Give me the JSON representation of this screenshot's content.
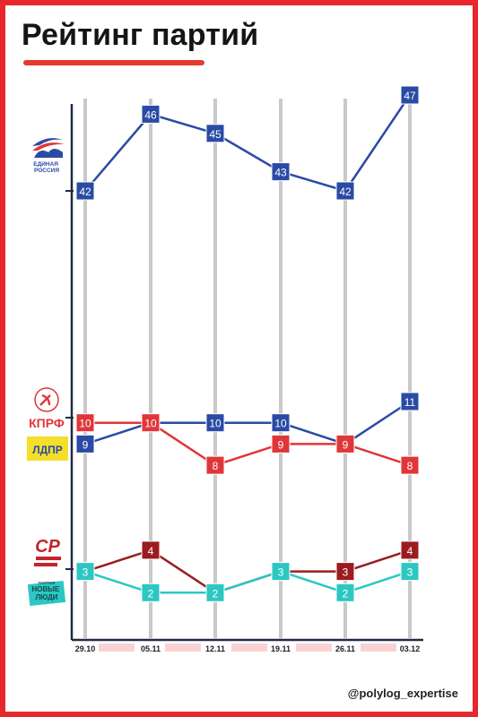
{
  "title": "Рейтинг партий",
  "watermark": "@polylog_expertise",
  "logos": {
    "er": "ЕДИНАЯ РОССИЯ",
    "kprf": "КПРФ",
    "ldpr": "ЛДПР",
    "sr": "СР",
    "nl": "НОВЫЕ ЛЮДИ",
    "nl_small": "ПАРТИЯ"
  },
  "colors": {
    "frame": "#e8272c",
    "er": "#2a4aa5",
    "kprf": "#e0363a",
    "ldpr": "#2a4aa5",
    "sr": "#9b1c20",
    "nl": "#2cc7c2"
  },
  "chart_data": {
    "type": "line",
    "categories": [
      "29.10",
      "05.11",
      "12.11",
      "19.11",
      "26.11",
      "03.12"
    ],
    "series": [
      {
        "key": "er",
        "values": [
          42,
          46,
          45,
          43,
          42,
          47
        ],
        "color": "#2a4aa5"
      },
      {
        "key": "ldpr",
        "values": [
          9,
          10,
          10,
          10,
          9,
          11
        ],
        "color": "#2a4aa5"
      },
      {
        "key": "kprf",
        "values": [
          10,
          10,
          8,
          9,
          9,
          8
        ],
        "color": "#e0363a"
      },
      {
        "key": "sr",
        "values": [
          3,
          4,
          2,
          3,
          3,
          4
        ],
        "color": "#9b1c20"
      },
      {
        "key": "nl",
        "values": [
          3,
          2,
          2,
          3,
          2,
          3
        ],
        "color": "#2cc7c2"
      }
    ],
    "y_axis_break": [
      12,
      41
    ],
    "grid": "vertical",
    "legend": "left logos"
  }
}
